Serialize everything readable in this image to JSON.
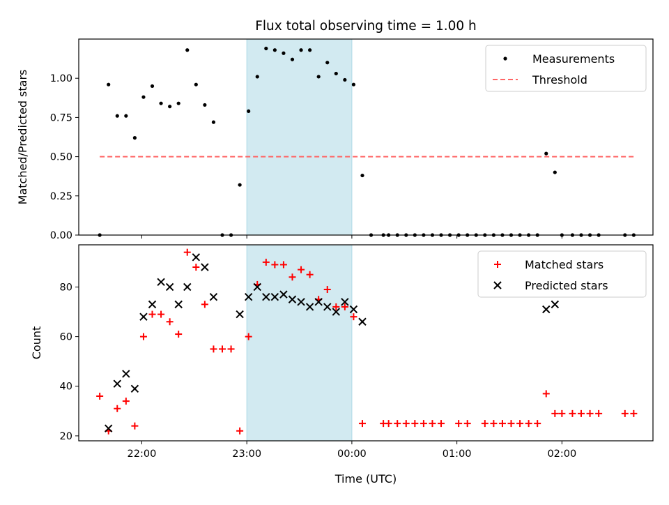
{
  "figure": {
    "title": "Flux total observing time = 1.00 h",
    "xlabel": "Time (UTC)"
  },
  "chart_data": [
    {
      "type": "scatter",
      "ylabel": "Matched/Predicted stars",
      "xlim": [
        "21:24",
        "02:52"
      ],
      "ylim": [
        0,
        1.25
      ],
      "yticks": [
        "0.00",
        "0.25",
        "0.50",
        "0.75",
        "1.00"
      ],
      "ytick_values": [
        0,
        0.25,
        0.5,
        0.75,
        1.0
      ],
      "xticks": [
        "22:00",
        "23:00",
        "00:00",
        "01:00",
        "02:00"
      ],
      "xtick_values": [
        "22:00",
        "23:00",
        "00:00",
        "01:00",
        "02:00"
      ],
      "shaded_interval": {
        "start": "23:00",
        "end": "00:00",
        "color": "#add8e6"
      },
      "legend": {
        "placement": "upper right",
        "entries": [
          "Measurements",
          "Threshold"
        ]
      },
      "series": [
        {
          "name": "Measurements",
          "marker": "dot",
          "color": "#000000",
          "points": [
            [
              "21:36",
              0.0
            ],
            [
              "21:41",
              0.96
            ],
            [
              "21:46",
              0.76
            ],
            [
              "21:51",
              0.76
            ],
            [
              "21:56",
              0.62
            ],
            [
              "22:01",
              0.88
            ],
            [
              "22:06",
              0.95
            ],
            [
              "22:11",
              0.84
            ],
            [
              "22:16",
              0.82
            ],
            [
              "22:21",
              0.84
            ],
            [
              "22:26",
              1.18
            ],
            [
              "22:31",
              0.96
            ],
            [
              "22:36",
              0.83
            ],
            [
              "22:41",
              0.72
            ],
            [
              "22:46",
              0.0
            ],
            [
              "22:51",
              0.0
            ],
            [
              "22:56",
              0.32
            ],
            [
              "23:01",
              0.79
            ],
            [
              "23:06",
              1.01
            ],
            [
              "23:11",
              1.19
            ],
            [
              "23:16",
              1.18
            ],
            [
              "23:21",
              1.16
            ],
            [
              "23:26",
              1.12
            ],
            [
              "23:31",
              1.18
            ],
            [
              "23:36",
              1.18
            ],
            [
              "23:41",
              1.01
            ],
            [
              "23:46",
              1.1
            ],
            [
              "23:51",
              1.03
            ],
            [
              "23:56",
              0.99
            ],
            [
              "00:01",
              0.96
            ],
            [
              "00:06",
              0.38
            ],
            [
              "00:11",
              0.0
            ],
            [
              "00:18",
              0.0
            ],
            [
              "00:21",
              0.0
            ],
            [
              "00:26",
              0.0
            ],
            [
              "00:31",
              0.0
            ],
            [
              "00:36",
              0.0
            ],
            [
              "00:41",
              0.0
            ],
            [
              "00:46",
              0.0
            ],
            [
              "00:51",
              0.0
            ],
            [
              "00:56",
              0.0
            ],
            [
              "01:01",
              0.0
            ],
            [
              "01:06",
              0.0
            ],
            [
              "01:11",
              0.0
            ],
            [
              "01:16",
              0.0
            ],
            [
              "01:21",
              0.0
            ],
            [
              "01:26",
              0.0
            ],
            [
              "01:31",
              0.0
            ],
            [
              "01:36",
              0.0
            ],
            [
              "01:41",
              0.0
            ],
            [
              "01:46",
              0.0
            ],
            [
              "01:51",
              0.52
            ],
            [
              "01:56",
              0.4
            ],
            [
              "02:00",
              0.0
            ],
            [
              "02:06",
              0.0
            ],
            [
              "02:11",
              0.0
            ],
            [
              "02:16",
              0.0
            ],
            [
              "02:21",
              0.0
            ],
            [
              "02:36",
              0.0
            ],
            [
              "02:41",
              0.0
            ]
          ]
        },
        {
          "name": "Threshold",
          "type": "line",
          "style": "dashed",
          "color": "#ff6666",
          "points": [
            [
              "21:36",
              0.5
            ],
            [
              "02:41",
              0.5
            ]
          ]
        }
      ]
    },
    {
      "type": "scatter",
      "ylabel": "Count",
      "xlim": [
        "21:24",
        "02:52"
      ],
      "ylim": [
        18,
        97
      ],
      "yticks": [
        "20",
        "40",
        "60",
        "80"
      ],
      "ytick_values": [
        20,
        40,
        60,
        80
      ],
      "xticks": [
        "22:00",
        "23:00",
        "00:00",
        "01:00",
        "02:00"
      ],
      "xtick_values": [
        "22:00",
        "23:00",
        "00:00",
        "01:00",
        "02:00"
      ],
      "shaded_interval": {
        "start": "23:00",
        "end": "00:00",
        "color": "#add8e6"
      },
      "legend": {
        "placement": "upper right",
        "entries": [
          "Matched stars",
          "Predicted stars"
        ]
      },
      "series": [
        {
          "name": "Matched stars",
          "marker": "plus",
          "color": "#ff0000",
          "points": [
            [
              "21:36",
              36
            ],
            [
              "21:41",
              22
            ],
            [
              "21:46",
              31
            ],
            [
              "21:51",
              34
            ],
            [
              "21:56",
              24
            ],
            [
              "22:01",
              60
            ],
            [
              "22:06",
              69
            ],
            [
              "22:11",
              69
            ],
            [
              "22:16",
              66
            ],
            [
              "22:21",
              61
            ],
            [
              "22:26",
              94
            ],
            [
              "22:31",
              88
            ],
            [
              "22:36",
              73
            ],
            [
              "22:41",
              55
            ],
            [
              "22:46",
              55
            ],
            [
              "22:51",
              55
            ],
            [
              "22:56",
              22
            ],
            [
              "23:01",
              60
            ],
            [
              "23:06",
              81
            ],
            [
              "23:11",
              90
            ],
            [
              "23:16",
              89
            ],
            [
              "23:21",
              89
            ],
            [
              "23:26",
              84
            ],
            [
              "23:31",
              87
            ],
            [
              "23:36",
              85
            ],
            [
              "23:41",
              75
            ],
            [
              "23:46",
              79
            ],
            [
              "23:51",
              72
            ],
            [
              "23:56",
              72
            ],
            [
              "00:01",
              68
            ],
            [
              "00:06",
              25
            ],
            [
              "00:18",
              25
            ],
            [
              "00:21",
              25
            ],
            [
              "00:26",
              25
            ],
            [
              "00:31",
              25
            ],
            [
              "00:36",
              25
            ],
            [
              "00:41",
              25
            ],
            [
              "00:46",
              25
            ],
            [
              "00:51",
              25
            ],
            [
              "01:01",
              25
            ],
            [
              "01:06",
              25
            ],
            [
              "01:16",
              25
            ],
            [
              "01:21",
              25
            ],
            [
              "01:26",
              25
            ],
            [
              "01:31",
              25
            ],
            [
              "01:36",
              25
            ],
            [
              "01:41",
              25
            ],
            [
              "01:46",
              25
            ],
            [
              "01:51",
              37
            ],
            [
              "01:56",
              29
            ],
            [
              "02:00",
              29
            ],
            [
              "02:06",
              29
            ],
            [
              "02:11",
              29
            ],
            [
              "02:16",
              29
            ],
            [
              "02:21",
              29
            ],
            [
              "02:36",
              29
            ],
            [
              "02:41",
              29
            ]
          ]
        },
        {
          "name": "Predicted stars",
          "marker": "x",
          "color": "#000000",
          "points": [
            [
              "21:41",
              23
            ],
            [
              "21:46",
              41
            ],
            [
              "21:51",
              45
            ],
            [
              "21:56",
              39
            ],
            [
              "22:01",
              68
            ],
            [
              "22:06",
              73
            ],
            [
              "22:11",
              82
            ],
            [
              "22:16",
              80
            ],
            [
              "22:21",
              73
            ],
            [
              "22:26",
              80
            ],
            [
              "22:31",
              92
            ],
            [
              "22:36",
              88
            ],
            [
              "22:41",
              76
            ],
            [
              "22:56",
              69
            ],
            [
              "23:01",
              76
            ],
            [
              "23:06",
              80
            ],
            [
              "23:11",
              76
            ],
            [
              "23:16",
              76
            ],
            [
              "23:21",
              77
            ],
            [
              "23:26",
              75
            ],
            [
              "23:31",
              74
            ],
            [
              "23:36",
              72
            ],
            [
              "23:41",
              74
            ],
            [
              "23:46",
              72
            ],
            [
              "23:51",
              70
            ],
            [
              "23:56",
              74
            ],
            [
              "00:01",
              71
            ],
            [
              "00:06",
              66
            ],
            [
              "01:51",
              71
            ],
            [
              "01:56",
              73
            ]
          ]
        }
      ]
    }
  ]
}
